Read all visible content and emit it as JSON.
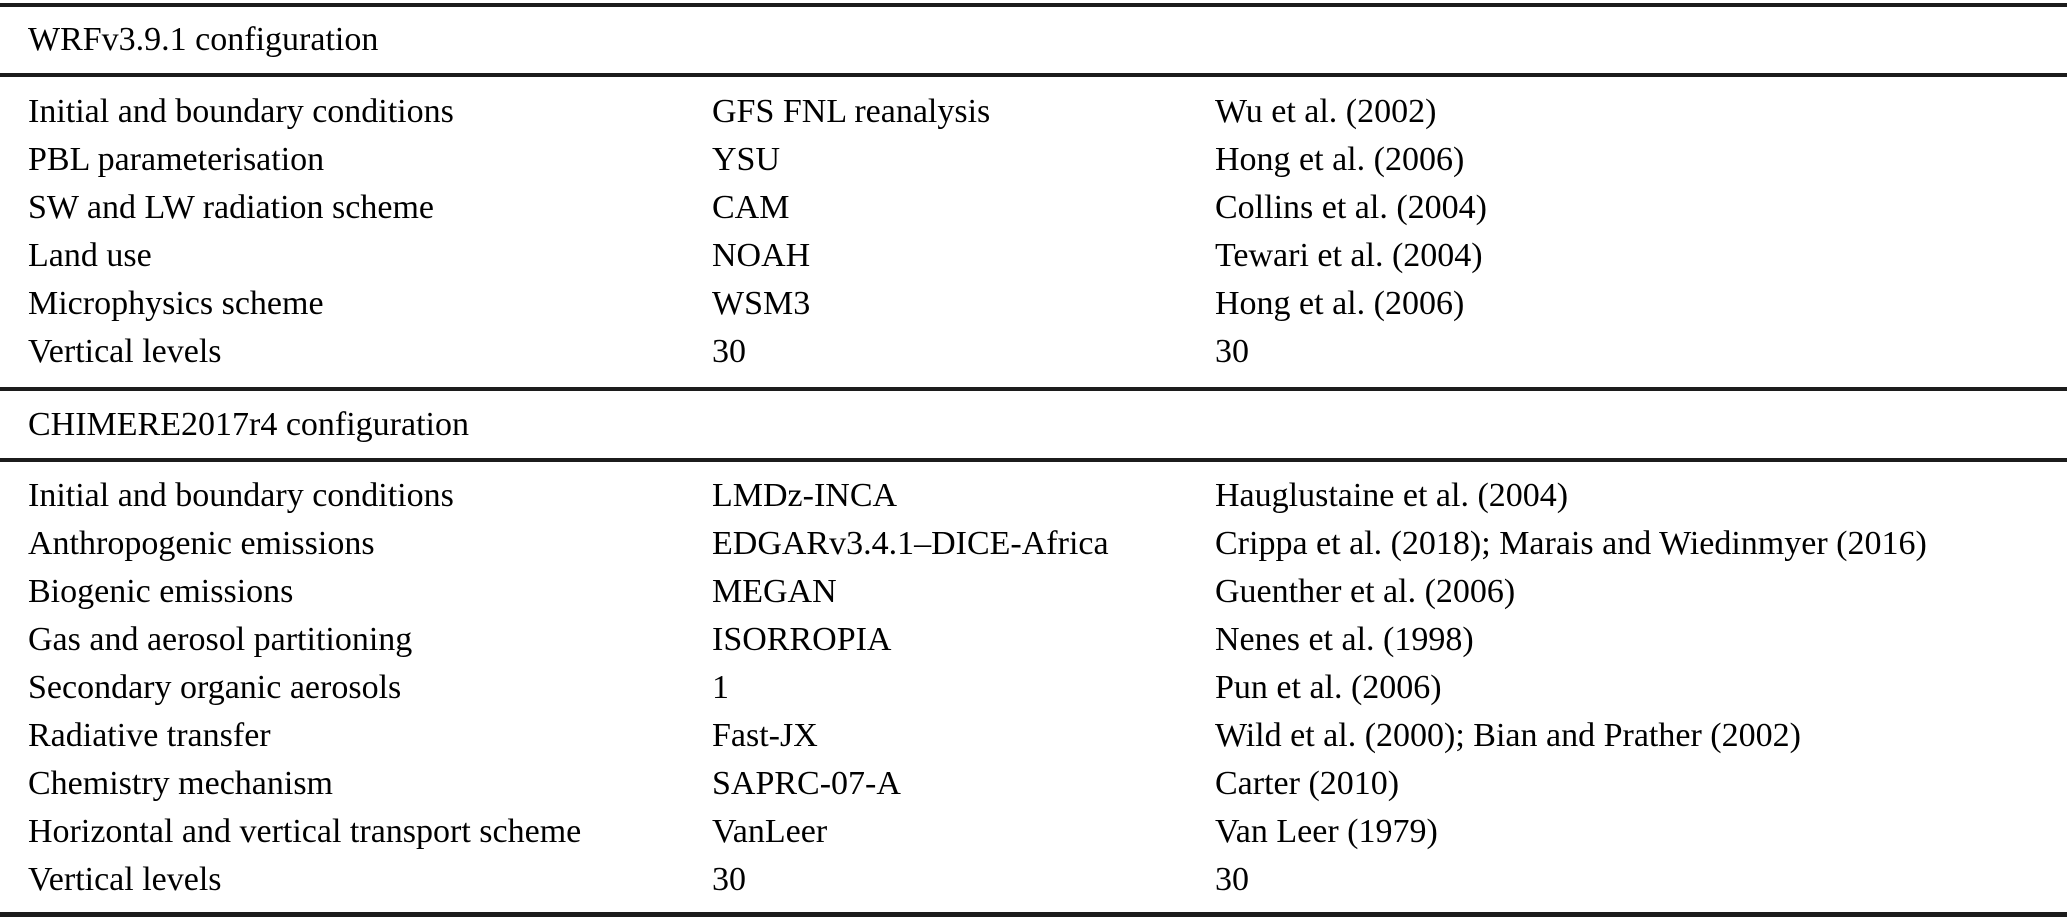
{
  "table": {
    "text_color": "#000000",
    "rule_color": "#1c1c1c",
    "sections": [
      {
        "title": "WRFv3.9.1 configuration",
        "rows": [
          {
            "parameter": "Initial and boundary conditions",
            "value": "GFS FNL reanalysis",
            "reference": "Wu et al. (2002)"
          },
          {
            "parameter": "PBL parameterisation",
            "value": "YSU",
            "reference": "Hong et al. (2006)"
          },
          {
            "parameter": "SW and LW radiation scheme",
            "value": "CAM",
            "reference": "Collins et al. (2004)"
          },
          {
            "parameter": "Land use",
            "value": "NOAH",
            "reference": "Tewari et al. (2004)"
          },
          {
            "parameter": "Microphysics scheme",
            "value": "WSM3",
            "reference": "Hong et al. (2006)"
          },
          {
            "parameter": "Vertical levels",
            "value": "30",
            "reference": "30"
          }
        ]
      },
      {
        "title": "CHIMERE2017r4 configuration",
        "rows": [
          {
            "parameter": "Initial and boundary conditions",
            "value": "LMDz-INCA",
            "reference": "Hauglustaine et al. (2004)"
          },
          {
            "parameter": "Anthropogenic emissions",
            "value": "EDGARv3.4.1–DICE-Africa",
            "reference": "Crippa et al. (2018); Marais and Wiedinmyer (2016)"
          },
          {
            "parameter": "Biogenic emissions",
            "value": "MEGAN",
            "reference": "Guenther et al. (2006)"
          },
          {
            "parameter": "Gas and aerosol partitioning",
            "value": "ISORROPIA",
            "reference": "Nenes et al. (1998)"
          },
          {
            "parameter": "Secondary organic aerosols",
            "value": "1",
            "reference": "Pun et al. (2006)"
          },
          {
            "parameter": "Radiative transfer",
            "value": "Fast-JX",
            "reference": "Wild et al. (2000); Bian and Prather (2002)"
          },
          {
            "parameter": "Chemistry mechanism",
            "value": "SAPRC-07-A",
            "reference": "Carter (2010)"
          },
          {
            "parameter": "Horizontal and vertical transport scheme",
            "value": "VanLeer",
            "reference": "Van Leer (1979)"
          },
          {
            "parameter": "Vertical levels",
            "value": "30",
            "reference": "30"
          }
        ]
      }
    ]
  }
}
